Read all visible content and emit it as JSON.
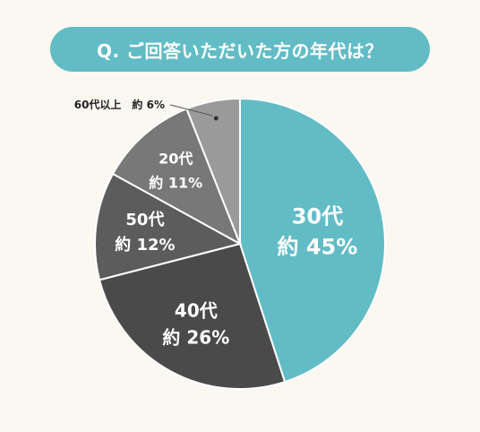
{
  "question": "Q. ご回答いただいた方の年代は？",
  "chart_data": {
    "type": "pie",
    "categories": [
      "30代",
      "40代",
      "50代",
      "20代",
      "60代以上"
    ],
    "values": [
      45,
      26,
      12,
      11,
      6
    ],
    "value_labels": [
      "約 45%",
      "約 26%",
      "約 12%",
      "約 11%",
      "約 6%"
    ],
    "colors": [
      "#62bcc5",
      "#4a4a4a",
      "#5c5c5c",
      "#787878",
      "#9a9a9a"
    ],
    "start_angle_deg": 0,
    "direction": "clockwise"
  }
}
